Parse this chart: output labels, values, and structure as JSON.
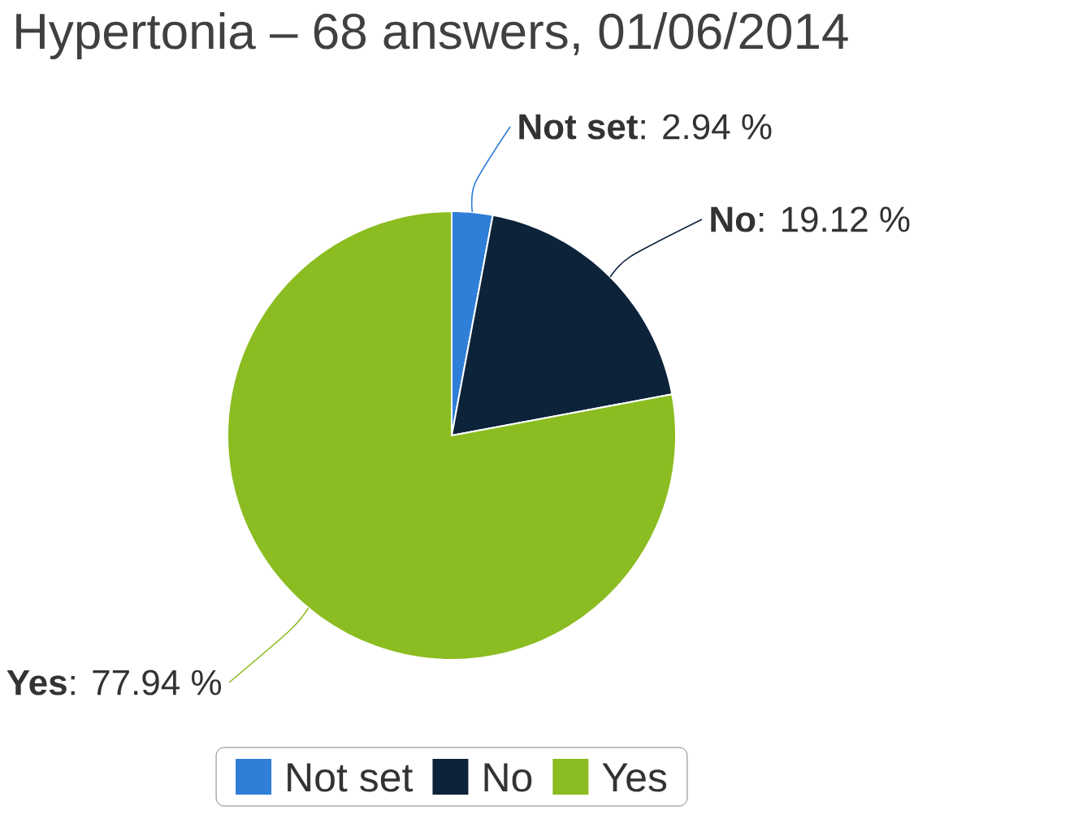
{
  "chart_data": {
    "type": "pie",
    "title": "Hypertonia – 68 answers, 01/06/2014",
    "categories": [
      "Not set",
      "No",
      "Yes"
    ],
    "values": [
      2.94,
      19.12,
      77.94
    ],
    "value_labels": [
      "**Not set**: 2.94 %",
      "**No**: 19.12 %",
      "**Yes**: 77.94 %"
    ],
    "colors": [
      "#2f7ed8",
      "#0d233a",
      "#8bbc21"
    ],
    "legend": "bottom"
  }
}
